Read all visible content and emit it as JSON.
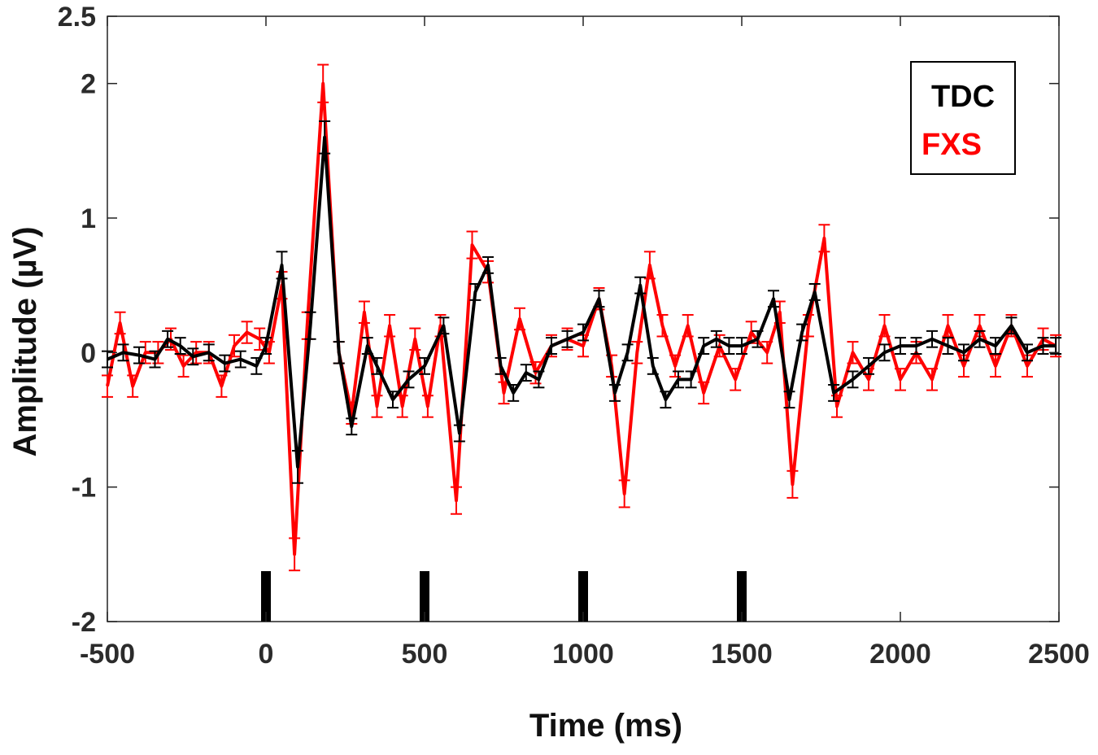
{
  "chart_data": {
    "type": "line",
    "title": "",
    "xlabel": "Time (ms)",
    "ylabel": "Amplitude (µV)",
    "xlim": [
      -500,
      2500
    ],
    "ylim": [
      -2,
      2.5
    ],
    "xticks": [
      -500,
      0,
      500,
      1000,
      1500,
      2000,
      2500
    ],
    "xtick_labels": [
      "-500",
      "0",
      "500",
      "1000",
      "1500",
      "2000",
      "2500"
    ],
    "yticks": [
      -2,
      -1,
      0,
      1,
      2,
      2.5
    ],
    "ytick_labels": [
      "-2",
      "-1",
      "0",
      "1",
      "2",
      "2.5"
    ],
    "grid": false,
    "legend_position": "top-right",
    "error_bars": true,
    "stimulus_markers": [
      0,
      500,
      1000,
      1500
    ],
    "series": [
      {
        "name": "TDC",
        "color": "#000000",
        "x": [
          -500,
          -450,
          -400,
          -350,
          -310,
          -270,
          -230,
          -180,
          -130,
          -80,
          -30,
          0,
          50,
          100,
          140,
          185,
          230,
          270,
          320,
          350,
          400,
          450,
          500,
          560,
          610,
          660,
          700,
          740,
          780,
          820,
          860,
          900,
          950,
          1000,
          1050,
          1100,
          1140,
          1180,
          1220,
          1260,
          1300,
          1340,
          1380,
          1420,
          1460,
          1500,
          1550,
          1600,
          1650,
          1690,
          1730,
          1790,
          1850,
          1900,
          1950,
          2000,
          2050,
          2100,
          2150,
          2200,
          2250,
          2300,
          2350,
          2400,
          2450,
          2490
        ],
        "y": [
          -0.05,
          0.0,
          -0.02,
          -0.05,
          0.1,
          0.05,
          -0.03,
          0.0,
          -0.08,
          -0.05,
          -0.1,
          0.05,
          0.65,
          -0.85,
          0.2,
          1.6,
          0.0,
          -0.55,
          0.05,
          -0.1,
          -0.35,
          -0.2,
          -0.1,
          0.2,
          -0.6,
          0.45,
          0.65,
          -0.1,
          -0.3,
          -0.15,
          -0.2,
          0.05,
          0.1,
          0.15,
          0.4,
          -0.3,
          0.0,
          0.5,
          -0.1,
          -0.35,
          -0.2,
          -0.2,
          0.05,
          0.1,
          0.05,
          0.05,
          0.1,
          0.4,
          -0.35,
          0.15,
          0.45,
          -0.3,
          -0.2,
          -0.1,
          0.0,
          0.05,
          0.05,
          0.1,
          0.05,
          0.0,
          0.1,
          0.05,
          0.2,
          0.0,
          0.05,
          0.05
        ],
        "error": [
          0.06,
          0.06,
          0.06,
          0.06,
          0.06,
          0.06,
          0.06,
          0.06,
          0.06,
          0.06,
          0.06,
          0.06,
          0.1,
          0.12,
          0.1,
          0.12,
          0.08,
          0.06,
          0.06,
          0.06,
          0.06,
          0.06,
          0.06,
          0.06,
          0.06,
          0.06,
          0.06,
          0.06,
          0.06,
          0.06,
          0.06,
          0.06,
          0.06,
          0.06,
          0.06,
          0.06,
          0.06,
          0.06,
          0.06,
          0.06,
          0.06,
          0.06,
          0.06,
          0.06,
          0.06,
          0.06,
          0.06,
          0.06,
          0.06,
          0.06,
          0.06,
          0.06,
          0.06,
          0.06,
          0.06,
          0.06,
          0.06,
          0.06,
          0.06,
          0.06,
          0.06,
          0.06,
          0.06,
          0.06,
          0.06,
          0.06
        ]
      },
      {
        "name": "FXS",
        "color": "#ff0000",
        "x": [
          -500,
          -460,
          -420,
          -380,
          -340,
          -300,
          -260,
          -220,
          -180,
          -140,
          -100,
          -60,
          -20,
          10,
          50,
          90,
          130,
          180,
          230,
          270,
          310,
          350,
          390,
          430,
          470,
          510,
          550,
          600,
          650,
          700,
          750,
          800,
          850,
          900,
          950,
          1000,
          1050,
          1090,
          1130,
          1170,
          1210,
          1250,
          1290,
          1330,
          1380,
          1430,
          1480,
          1530,
          1580,
          1620,
          1660,
          1710,
          1760,
          1800,
          1850,
          1900,
          1950,
          2000,
          2050,
          2100,
          2150,
          2200,
          2250,
          2300,
          2350,
          2400,
          2450,
          2490
        ],
        "y": [
          -0.25,
          0.22,
          -0.25,
          0.0,
          0.0,
          0.1,
          -0.1,
          0.0,
          0.0,
          -0.25,
          0.05,
          0.15,
          0.1,
          0.0,
          0.5,
          -1.5,
          0.2,
          2.0,
          0.0,
          -0.45,
          0.3,
          -0.4,
          0.2,
          -0.4,
          0.1,
          -0.4,
          0.2,
          -1.1,
          0.8,
          0.6,
          -0.3,
          0.25,
          -0.15,
          0.05,
          0.1,
          0.05,
          0.4,
          -0.1,
          -1.05,
          0.0,
          0.65,
          0.2,
          -0.1,
          0.2,
          -0.3,
          0.05,
          -0.2,
          0.15,
          0.0,
          0.3,
          -0.98,
          0.2,
          0.85,
          -0.4,
          0.0,
          -0.2,
          0.2,
          -0.2,
          0.0,
          -0.2,
          0.2,
          -0.1,
          0.2,
          -0.1,
          0.2,
          -0.1,
          0.1,
          0.05
        ],
        "error": [
          0.08,
          0.08,
          0.08,
          0.08,
          0.08,
          0.08,
          0.08,
          0.08,
          0.08,
          0.08,
          0.08,
          0.08,
          0.08,
          0.08,
          0.1,
          0.12,
          0.1,
          0.14,
          0.08,
          0.08,
          0.08,
          0.08,
          0.08,
          0.08,
          0.08,
          0.08,
          0.08,
          0.1,
          0.1,
          0.08,
          0.08,
          0.08,
          0.08,
          0.08,
          0.08,
          0.08,
          0.08,
          0.08,
          0.1,
          0.08,
          0.1,
          0.08,
          0.08,
          0.08,
          0.08,
          0.08,
          0.08,
          0.08,
          0.08,
          0.08,
          0.1,
          0.08,
          0.1,
          0.08,
          0.08,
          0.08,
          0.08,
          0.08,
          0.08,
          0.08,
          0.08,
          0.08,
          0.08,
          0.08,
          0.08,
          0.08,
          0.08,
          0.08
        ]
      }
    ]
  }
}
